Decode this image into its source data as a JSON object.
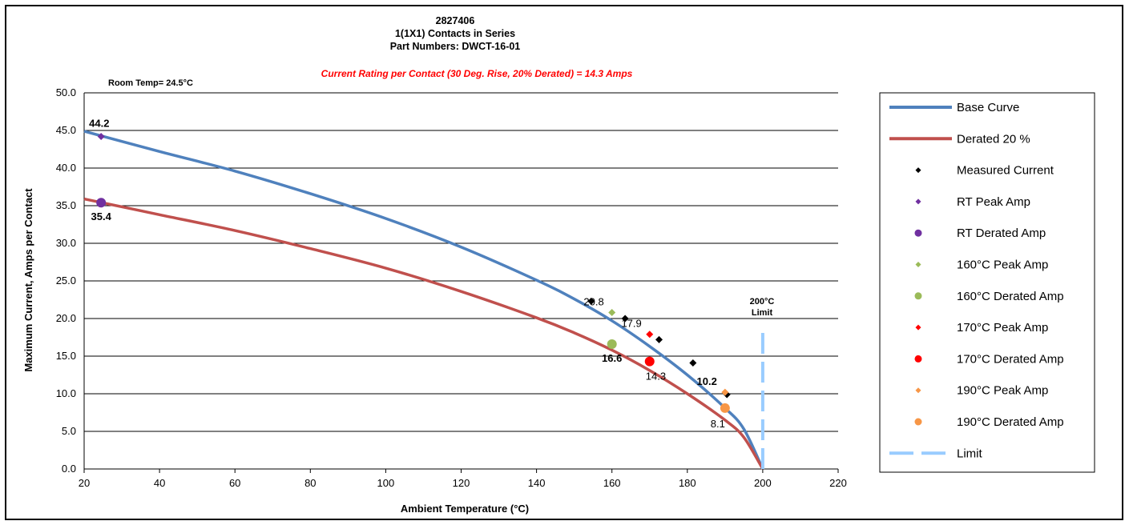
{
  "chart_data": {
    "type": "line",
    "title_lines": [
      "2827406",
      "1(1X1) Contacts in Series",
      "Part Numbers: DWCT-16-01"
    ],
    "rating_note": "Current Rating per Contact (30 Deg. Rise, 20% Derated)  = 14.3 Amps",
    "room_temp_note": "Room Temp= 24.5°C",
    "limit_note": [
      "200°C",
      "Limit"
    ],
    "xlabel": "Ambient Temperature (°C)",
    "ylabel": "Maximum Current, Amps per Contact",
    "xlim": [
      20,
      220
    ],
    "ylim": [
      0,
      50
    ],
    "x_ticks": [
      "20",
      "40",
      "60",
      "80",
      "100",
      "120",
      "140",
      "160",
      "180",
      "200",
      "220"
    ],
    "y_ticks": [
      "0.0",
      "5.0",
      "10.0",
      "15.0",
      "20.0",
      "25.0",
      "30.0",
      "35.0",
      "40.0",
      "45.0",
      "50.0"
    ],
    "grid": "horizontal",
    "legend_position": "right",
    "series": [
      {
        "name": "Base Curve",
        "kind": "line",
        "color": "#4f81bd",
        "x": [
          20,
          40,
          60,
          80,
          100,
          120,
          140,
          150,
          160,
          170,
          180,
          190,
          195,
          200
        ],
        "y": [
          44.9,
          42.2,
          39.6,
          36.6,
          33.3,
          29.5,
          25.1,
          22.6,
          19.7,
          16.3,
          12.5,
          8.1,
          5.3,
          0
        ]
      },
      {
        "name": "Derated 20 %",
        "kind": "line",
        "color": "#c0504d",
        "x": [
          20,
          40,
          60,
          80,
          100,
          120,
          140,
          150,
          160,
          170,
          180,
          190,
          195,
          200
        ],
        "y": [
          35.9,
          33.8,
          31.7,
          29.3,
          26.7,
          23.6,
          20.1,
          18.1,
          15.8,
          13.1,
          10.0,
          6.5,
          4.2,
          0
        ]
      },
      {
        "name": "Measured Current",
        "kind": "marker",
        "shape": "diamond",
        "color": "#000000",
        "x": [
          154.5,
          163.5,
          172.5,
          181.5,
          190.5
        ],
        "y": [
          22.3,
          20.0,
          17.2,
          14.1,
          9.9
        ]
      },
      {
        "name": "RT Peak Amp",
        "kind": "marker",
        "shape": "diamond",
        "color": "#7030a0",
        "x": [
          24.5
        ],
        "y": [
          44.2
        ]
      },
      {
        "name": "RT Derated Amp",
        "kind": "marker",
        "shape": "circle",
        "color": "#7030a0",
        "x": [
          24.5
        ],
        "y": [
          35.4
        ]
      },
      {
        "name": "160°C Peak Amp",
        "kind": "marker",
        "shape": "diamond",
        "color": "#9bbb59",
        "x": [
          160
        ],
        "y": [
          20.8
        ]
      },
      {
        "name": "160°C Derated Amp",
        "kind": "marker",
        "shape": "circle",
        "color": "#9bbb59",
        "x": [
          160
        ],
        "y": [
          16.6
        ]
      },
      {
        "name": "170°C Peak Amp",
        "kind": "marker",
        "shape": "diamond",
        "color": "#ff0000",
        "x": [
          170
        ],
        "y": [
          17.9
        ]
      },
      {
        "name": "170°C Derated Amp",
        "kind": "marker",
        "shape": "circle",
        "color": "#ff0000",
        "x": [
          170
        ],
        "y": [
          14.3
        ]
      },
      {
        "name": "190°C Peak Amp",
        "kind": "marker",
        "shape": "diamond",
        "color": "#f79646",
        "x": [
          190
        ],
        "y": [
          10.2
        ]
      },
      {
        "name": "190°C Derated Amp",
        "kind": "marker",
        "shape": "circle",
        "color": "#f79646",
        "x": [
          190
        ],
        "y": [
          8.1
        ]
      },
      {
        "name": "Limit",
        "kind": "dashed",
        "color": "#99ccff",
        "x": [
          200,
          200
        ],
        "y": [
          0,
          19
        ]
      }
    ],
    "data_labels": [
      {
        "text": "44.2",
        "x": 24.5,
        "y": 44.2,
        "anchor": "above-left",
        "bold": true
      },
      {
        "text": "35.4",
        "x": 24.5,
        "y": 35.4,
        "anchor": "below",
        "bold": true
      },
      {
        "text": "20.8",
        "x": 160,
        "y": 20.8,
        "anchor": "above-left",
        "bold": false
      },
      {
        "text": "16.6",
        "x": 160,
        "y": 16.6,
        "anchor": "below",
        "bold": true
      },
      {
        "text": "17.9",
        "x": 170,
        "y": 17.9,
        "anchor": "above-left",
        "bold": false
      },
      {
        "text": "14.3",
        "x": 170,
        "y": 14.3,
        "anchor": "below-right",
        "bold": false
      },
      {
        "text": "10.2",
        "x": 190,
        "y": 10.2,
        "anchor": "above-left",
        "bold": true
      },
      {
        "text": "8.1",
        "x": 190,
        "y": 8.1,
        "anchor": "below-left",
        "bold": false
      }
    ]
  }
}
